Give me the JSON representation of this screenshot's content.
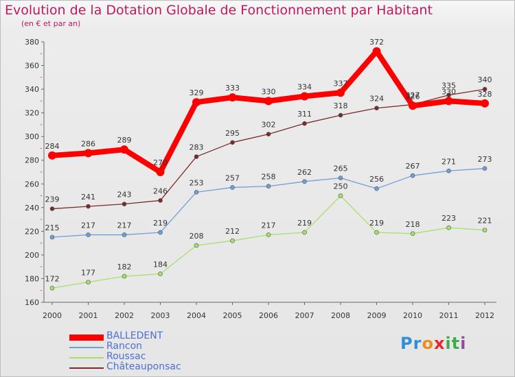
{
  "title": "Evolution de la Dotation Globale de Fonctionnement par Habitant",
  "subtitle": "(en € et par an)",
  "chart_data": {
    "type": "line",
    "x": [
      "2000",
      "2001",
      "2002",
      "2003",
      "2004",
      "2005",
      "2006",
      "2007",
      "2008",
      "2009",
      "2010",
      "2011",
      "2012"
    ],
    "ylim": [
      160,
      380
    ],
    "yticks": [
      160,
      180,
      200,
      220,
      240,
      260,
      280,
      300,
      320,
      340,
      360,
      380
    ],
    "grid": false,
    "legend_position": "bottom-left",
    "series": [
      {
        "name": "BALLEDENT",
        "color": "#ff0000",
        "values": [
          284,
          286,
          289,
          270,
          329,
          333,
          330,
          334,
          337,
          372,
          326,
          330,
          328
        ]
      },
      {
        "name": "Rancon",
        "color": "#6f9fd8",
        "values": [
          215,
          217,
          217,
          219,
          253,
          257,
          258,
          262,
          265,
          256,
          267,
          271,
          273
        ]
      },
      {
        "name": "Roussac",
        "color": "#a6e06a",
        "values": [
          172,
          177,
          182,
          184,
          208,
          212,
          217,
          219,
          250,
          219,
          218,
          223,
          221
        ]
      },
      {
        "name": "Châteauponsac",
        "color": "#7a2a2a",
        "values": [
          239,
          241,
          243,
          246,
          283,
          295,
          302,
          311,
          318,
          324,
          327,
          335,
          340
        ]
      }
    ]
  },
  "logo": {
    "letters": [
      "P",
      "r",
      "o",
      "x",
      "i",
      "t",
      "i"
    ],
    "colors": [
      "#2f8fd8",
      "#2f8fd8",
      "#f08c1e",
      "#e8262a",
      "#3fae49",
      "#3fae49",
      "#8c4fa0"
    ]
  }
}
